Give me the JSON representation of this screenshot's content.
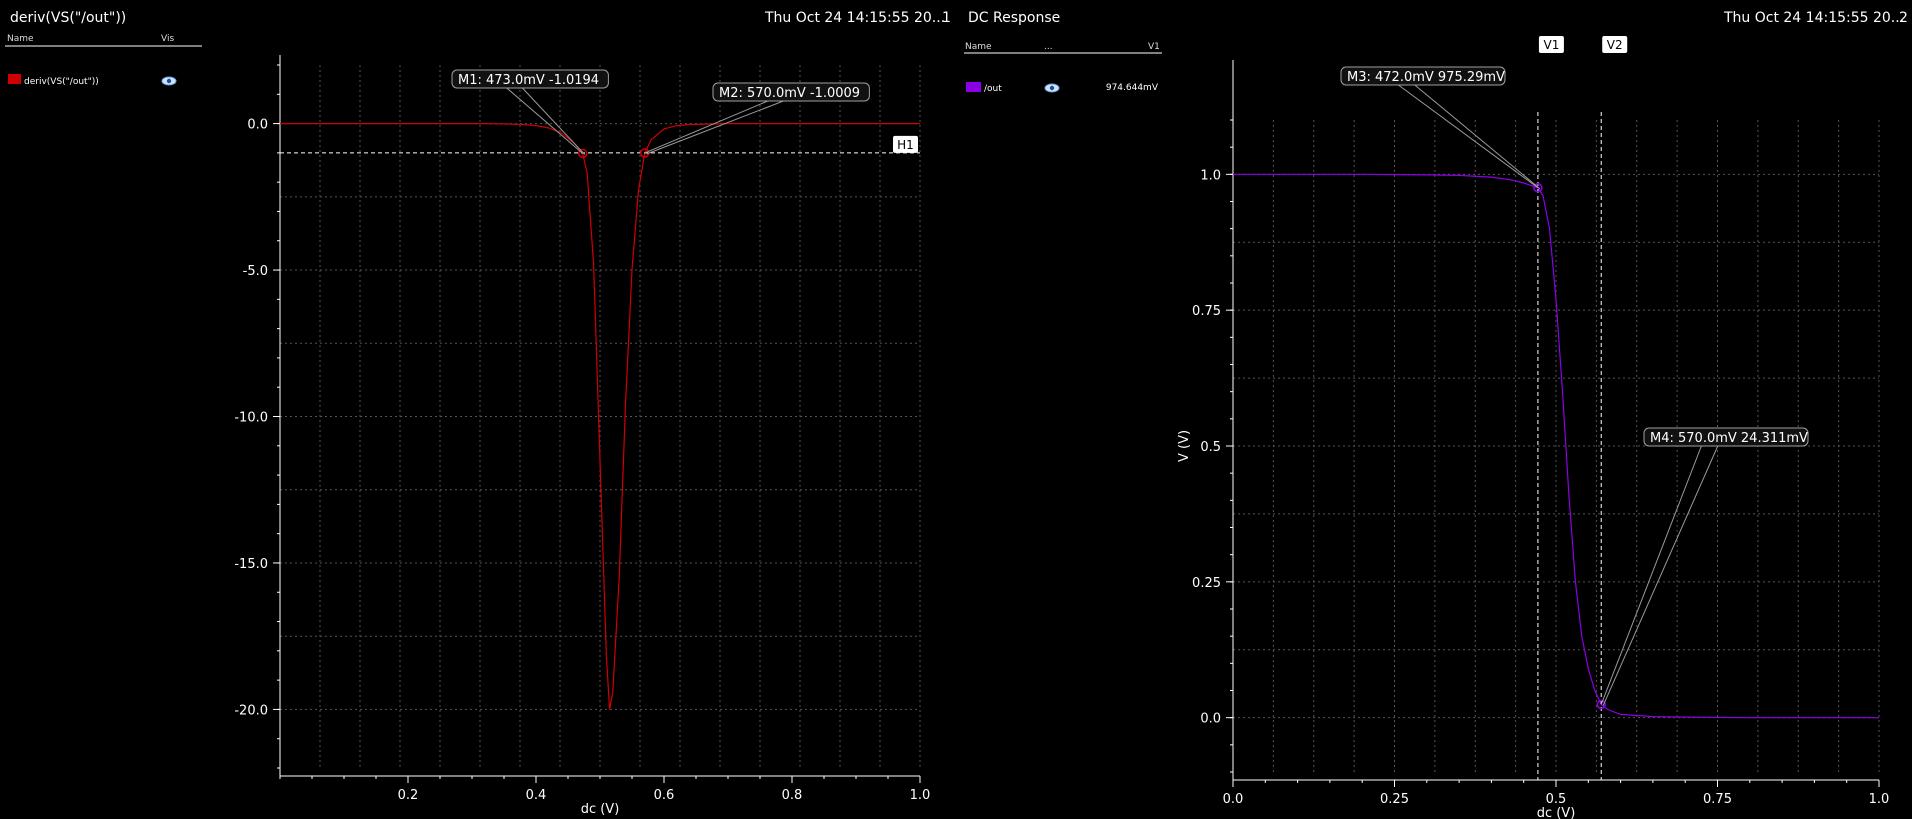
{
  "colors": {
    "bg": "#000000",
    "trace_left": "#d10000",
    "trace_right": "#8b00e6",
    "grid": "#555555"
  },
  "left": {
    "title": "deriv(VS(\"/out\"))",
    "timestamp": "Thu Oct 24 14:15:55 20...",
    "window_number": "1",
    "legend_headers": [
      "Name",
      "Vis"
    ],
    "legend_entry": "deriv(VS(\"/out\"))",
    "legend_icon": "eye-icon",
    "hline_label": "H1",
    "markers": [
      "M1: 473.0mV -1.0194",
      "M2: 570.0mV -1.0009"
    ]
  },
  "right": {
    "title": "DC Response",
    "timestamp": "Thu Oct 24 14:15:55 20...",
    "window_number": "2",
    "legend_headers": [
      "Name",
      "...",
      "V1"
    ],
    "legend_entry": "/out",
    "legend_value": "974.644mV",
    "legend_icon": "eye-icon",
    "vline_labels": [
      "V1",
      "V2"
    ],
    "markers": [
      "M3: 472.0mV 975.29mV",
      "M4: 570.0mV 24.311mV"
    ]
  },
  "chart_data": [
    {
      "type": "line",
      "title": "deriv(VS(\"/out\"))",
      "xlabel": "dc (V)",
      "ylabel": "",
      "xlim": [
        0,
        1.0
      ],
      "ylim": [
        -22,
        2
      ],
      "xticks": [
        0.2,
        0.4,
        0.6,
        0.8,
        1.0
      ],
      "xtick_labels": [
        "0.2",
        "0.4",
        "0.6",
        "0.8",
        "1.0"
      ],
      "yticks": [
        0,
        -5,
        -10,
        -15,
        -20
      ],
      "ytick_labels": [
        "0.0",
        "-5.0",
        "-10.0",
        "-15.0",
        "-20.0"
      ],
      "series": [
        {
          "name": "deriv(VS(\"/out\"))",
          "x": [
            0.0,
            0.1,
            0.2,
            0.3,
            0.35,
            0.38,
            0.4,
            0.42,
            0.44,
            0.46,
            0.473,
            0.48,
            0.49,
            0.5,
            0.51,
            0.515,
            0.52,
            0.53,
            0.54,
            0.55,
            0.56,
            0.57,
            0.58,
            0.6,
            0.62,
            0.64,
            0.7,
            0.8,
            0.9,
            1.0
          ],
          "y": [
            0,
            0,
            0,
            0,
            -0.01,
            -0.03,
            -0.07,
            -0.15,
            -0.32,
            -0.68,
            -1.0194,
            -1.7,
            -4.8,
            -11.5,
            -18.2,
            -20.0,
            -19.4,
            -15.5,
            -9.5,
            -5.0,
            -2.3,
            -1.0009,
            -0.55,
            -0.18,
            -0.07,
            -0.03,
            0,
            0,
            0,
            0
          ]
        }
      ],
      "hline": {
        "label": "H1",
        "y": -1.0
      },
      "markers": [
        {
          "label": "M1: 473.0mV -1.0194",
          "x": 0.473,
          "y": -1.0194
        },
        {
          "label": "M2: 570.0mV -1.0009",
          "x": 0.57,
          "y": -1.0009
        }
      ]
    },
    {
      "type": "line",
      "title": "DC Response",
      "xlabel": "dc (V)",
      "ylabel": "V (V)",
      "xlim": [
        0,
        1.0
      ],
      "ylim": [
        -0.1,
        1.1
      ],
      "xticks": [
        0,
        0.25,
        0.5,
        0.75,
        1.0
      ],
      "xtick_labels": [
        "0.0",
        "0.25",
        "0.5",
        "0.75",
        "1.0"
      ],
      "yticks": [
        0,
        0.25,
        0.5,
        0.75,
        1.0
      ],
      "ytick_labels": [
        "0.0",
        "0.25",
        "0.5",
        "0.75",
        "1.0"
      ],
      "series": [
        {
          "name": "/out",
          "x": [
            0.0,
            0.1,
            0.2,
            0.3,
            0.35,
            0.4,
            0.43,
            0.45,
            0.46,
            0.472,
            0.48,
            0.49,
            0.5,
            0.51,
            0.52,
            0.53,
            0.54,
            0.55,
            0.56,
            0.57,
            0.58,
            0.6,
            0.65,
            0.7,
            0.8,
            0.9,
            1.0
          ],
          "y": [
            1.0,
            1.0,
            1.0,
            0.999,
            0.998,
            0.995,
            0.99,
            0.984,
            0.98,
            0.97529,
            0.96,
            0.9,
            0.77,
            0.6,
            0.41,
            0.25,
            0.15,
            0.09,
            0.05,
            0.024311,
            0.015,
            0.006,
            0.002,
            0.001,
            0.0,
            0.0,
            0.0
          ]
        }
      ],
      "vlines": [
        {
          "label": "V1",
          "x": 0.472
        },
        {
          "label": "V2",
          "x": 0.57
        }
      ],
      "markers": [
        {
          "label": "M3: 472.0mV 975.29mV",
          "x": 0.472,
          "y": 0.97529
        },
        {
          "label": "M4: 570.0mV 24.311mV",
          "x": 0.57,
          "y": 0.024311
        }
      ]
    }
  ]
}
